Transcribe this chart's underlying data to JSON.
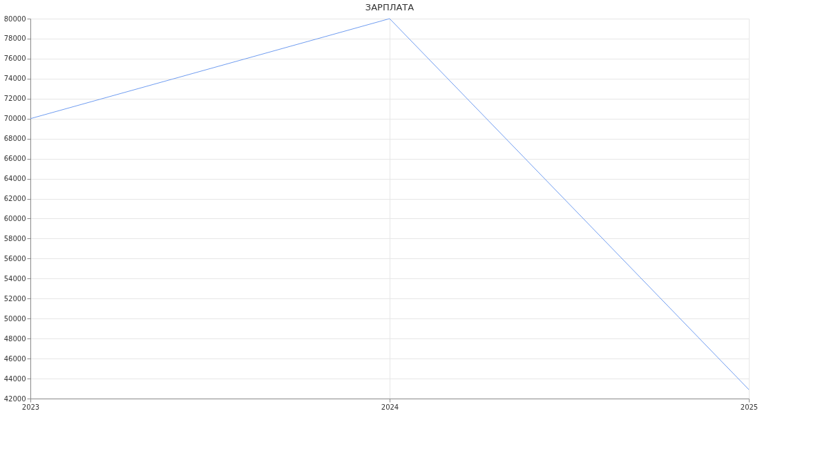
{
  "chart_data": {
    "type": "line",
    "title": "ЗАРПЛАТА",
    "x": [
      2023,
      2024,
      2025
    ],
    "series": [
      {
        "color": "#6f9cf0",
        "values": [
          70000,
          80000,
          42900
        ]
      }
    ],
    "xlim": [
      2023,
      2025
    ],
    "xticks": [
      2023,
      2024,
      2025
    ],
    "ylim": [
      42000,
      80000
    ],
    "yticks": [
      42000,
      44000,
      46000,
      48000,
      50000,
      52000,
      54000,
      56000,
      58000,
      60000,
      62000,
      64000,
      66000,
      68000,
      70000,
      72000,
      74000,
      76000,
      78000,
      80000
    ],
    "grid": true,
    "marker": "none",
    "line_style": "solid"
  }
}
